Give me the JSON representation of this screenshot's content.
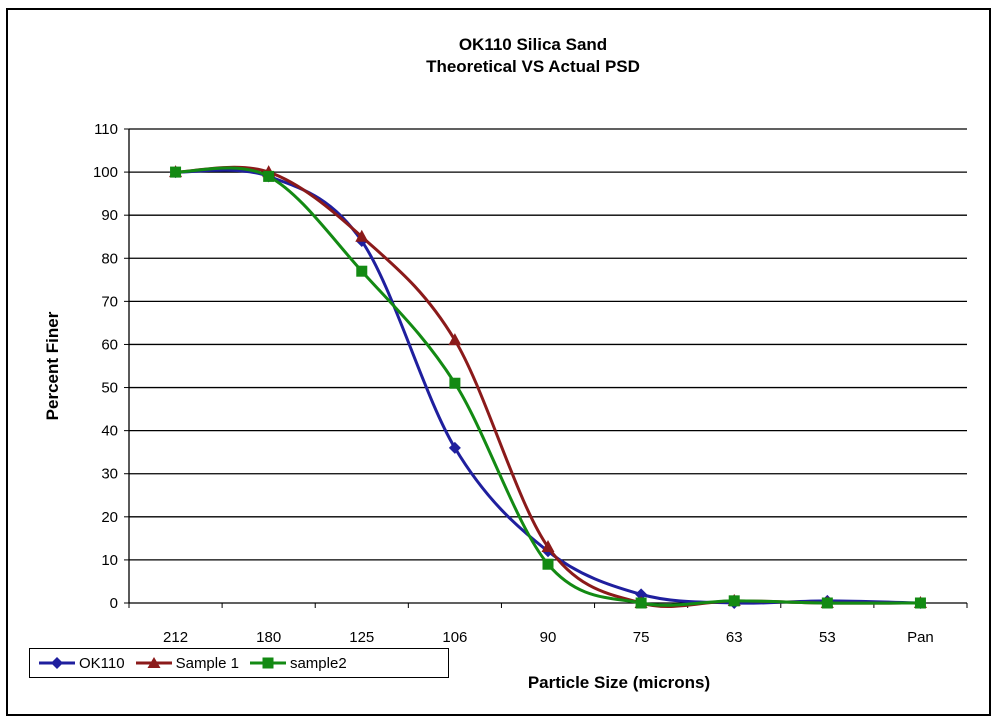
{
  "chart_data": {
    "type": "line",
    "title": [
      "OK110 Silica Sand",
      "Theoretical VS Actual PSD"
    ],
    "xlabel": "Particle Size (microns)",
    "ylabel": "Percent Finer",
    "categories": [
      "212",
      "180",
      "125",
      "106",
      "90",
      "75",
      "63",
      "53",
      "Pan"
    ],
    "ylim": [
      0,
      110
    ],
    "yticks": [
      0,
      10,
      20,
      30,
      40,
      50,
      60,
      70,
      80,
      90,
      100,
      110
    ],
    "grid": "horizontal",
    "legend_position": "bottom-left",
    "series": [
      {
        "name": "OK110",
        "color": "#1f1f9e",
        "marker": "diamond",
        "values": [
          100,
          99,
          84,
          36,
          12,
          2,
          0,
          0.5,
          0
        ]
      },
      {
        "name": "Sample 1",
        "color": "#8b1a1a",
        "marker": "triangle",
        "values": [
          100,
          100,
          85,
          61,
          13,
          0,
          0.5,
          0,
          0
        ]
      },
      {
        "name": "sample2",
        "color": "#138a13",
        "marker": "square",
        "values": [
          100,
          99,
          77,
          51,
          9,
          0,
          0.5,
          0,
          0
        ]
      }
    ]
  }
}
